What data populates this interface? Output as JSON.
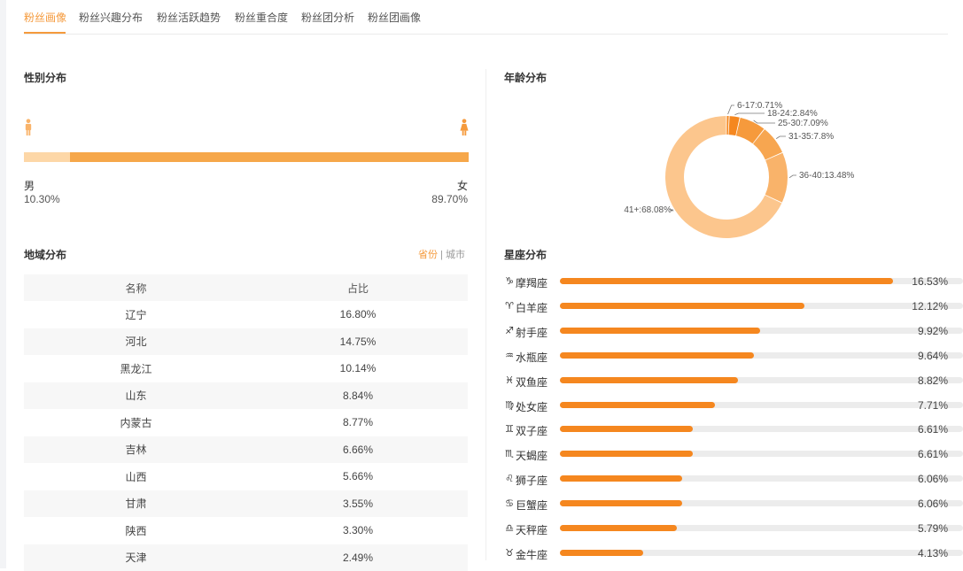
{
  "tabs": [
    "粉丝画像",
    "粉丝兴趣分布",
    "粉丝活跃趋势",
    "粉丝重合度",
    "粉丝团分析",
    "粉丝团画像"
  ],
  "gender": {
    "title": "性别分布",
    "male_label": "男",
    "male_pct": "10.30%",
    "male_value": 10.3,
    "female_label": "女",
    "female_pct": "89.70%",
    "female_value": 89.7,
    "male_color": "#fdd7a7",
    "female_color": "#f6a74a"
  },
  "region": {
    "title": "地域分布",
    "switch_province": "省份",
    "switch_sep": "|",
    "switch_city": "城市",
    "headers": [
      "名称",
      "占比"
    ],
    "rows": [
      [
        "辽宁",
        "16.80%"
      ],
      [
        "河北",
        "14.75%"
      ],
      [
        "黑龙江",
        "10.14%"
      ],
      [
        "山东",
        "8.84%"
      ],
      [
        "内蒙古",
        "8.77%"
      ],
      [
        "吉林",
        "6.66%"
      ],
      [
        "山西",
        "5.66%"
      ],
      [
        "甘肃",
        "3.55%"
      ],
      [
        "陕西",
        "3.30%"
      ],
      [
        "天津",
        "2.49%"
      ]
    ]
  },
  "age": {
    "title": "年龄分布",
    "chart_data": {
      "type": "pie",
      "categories": [
        "6-17",
        "18-24",
        "25-30",
        "31-35",
        "36-40",
        "41+"
      ],
      "values": [
        0.71,
        2.84,
        7.09,
        7.8,
        13.48,
        68.08
      ],
      "labels": [
        "6-17:0.71%",
        "18-24:2.84%",
        "25-30:7.09%",
        "31-35:7.8%",
        "36-40:13.48%",
        "41+:68.08%"
      ],
      "colors": [
        "#f5871f",
        "#f5871f",
        "#f69a3c",
        "#f7a650",
        "#f9b36a",
        "#fcc68d"
      ]
    }
  },
  "zodiac": {
    "title": "星座分布",
    "items": [
      {
        "icon": "♑",
        "name": "摩羯座",
        "value": 16.53,
        "pct": "16.53%"
      },
      {
        "icon": "♈",
        "name": "白羊座",
        "value": 12.12,
        "pct": "12.12%"
      },
      {
        "icon": "♐",
        "name": "射手座",
        "value": 9.92,
        "pct": "9.92%"
      },
      {
        "icon": "♒",
        "name": "水瓶座",
        "value": 9.64,
        "pct": "9.64%"
      },
      {
        "icon": "♓",
        "name": "双鱼座",
        "value": 8.82,
        "pct": "8.82%"
      },
      {
        "icon": "♍",
        "name": "处女座",
        "value": 7.71,
        "pct": "7.71%"
      },
      {
        "icon": "♊",
        "name": "双子座",
        "value": 6.61,
        "pct": "6.61%"
      },
      {
        "icon": "♏",
        "name": "天蝎座",
        "value": 6.61,
        "pct": "6.61%"
      },
      {
        "icon": "♌",
        "name": "狮子座",
        "value": 6.06,
        "pct": "6.06%"
      },
      {
        "icon": "♋",
        "name": "巨蟹座",
        "value": 6.06,
        "pct": "6.06%"
      },
      {
        "icon": "♎",
        "name": "天秤座",
        "value": 5.79,
        "pct": "5.79%"
      },
      {
        "icon": "♉",
        "name": "金牛座",
        "value": 4.13,
        "pct": "4.13%"
      }
    ],
    "max": 20
  }
}
